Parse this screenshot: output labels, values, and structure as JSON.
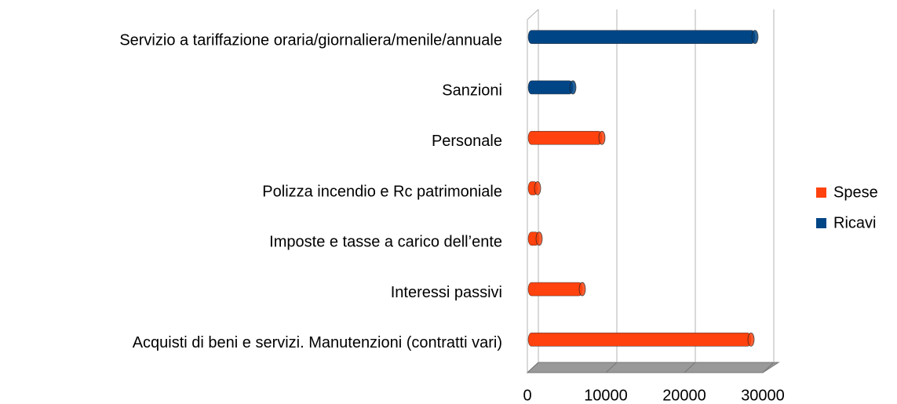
{
  "chart_data": {
    "type": "bar3d",
    "orientation": "horizontal",
    "categories": [
      "Servizio a tariffazione oraria/giornaliera/menile/annuale",
      "Sanzioni",
      "Personale",
      "Polizza incendio e Rc patrimoniale",
      "Imposte e tasse a carico dell’ente",
      "Interessi passivi",
      "Acquisti di beni e servizi. Manutenzioni (contratti vari)"
    ],
    "series": [
      {
        "name": "Spese",
        "color": "#ff420e",
        "values": [
          null,
          null,
          9000,
          800,
          1000,
          6500,
          28000
        ]
      },
      {
        "name": "Ricavi",
        "color": "#004586",
        "values": [
          28500,
          5300,
          null,
          null,
          null,
          null,
          null
        ]
      }
    ],
    "xlim": [
      0,
      30000
    ],
    "xticks": [
      0,
      10000,
      20000,
      30000
    ],
    "grid": true,
    "legend": "right"
  }
}
